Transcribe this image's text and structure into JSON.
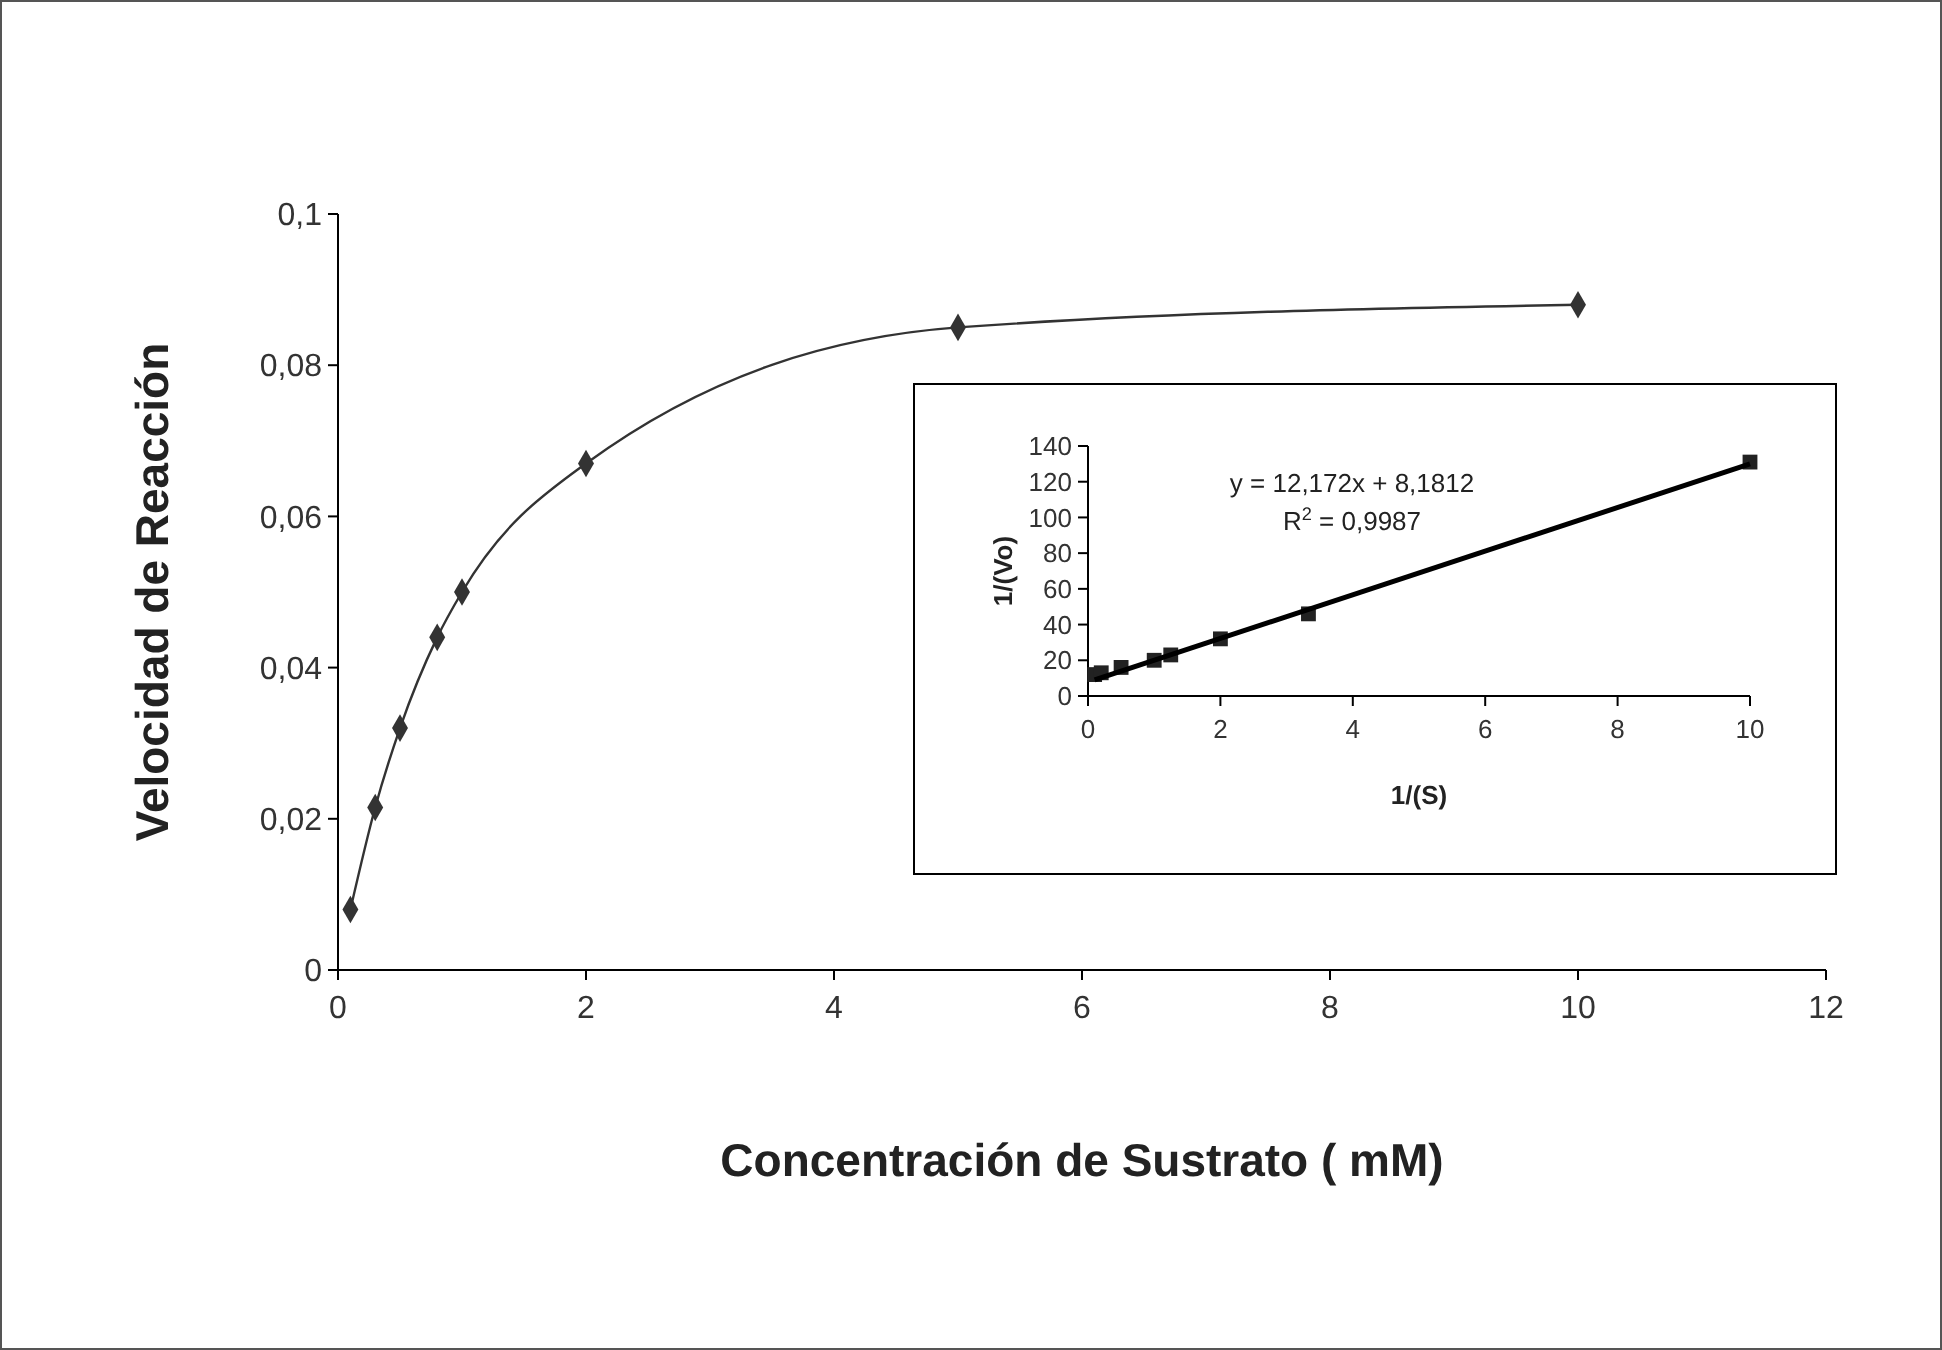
{
  "chart_data": [
    {
      "type": "line",
      "xlabel": "Concentración de Sustrato ( mM)",
      "ylabel": "Velocidad de Reacción",
      "x": [
        0.1,
        0.3,
        0.5,
        0.8,
        1,
        2,
        5,
        10
      ],
      "series": [
        {
          "color": "#333333",
          "values": [
            0.008,
            0.0215,
            0.032,
            0.044,
            0.05,
            0.067,
            0.085,
            0.088
          ]
        }
      ],
      "xlim": [
        0,
        12
      ],
      "xticks": [
        0,
        2,
        4,
        6,
        8,
        10,
        12
      ],
      "ylim": [
        0,
        0.1
      ],
      "yticks": [
        0,
        {
          "value": 0.02,
          "label": "0,02"
        },
        {
          "value": 0.04,
          "label": "0,04"
        },
        {
          "value": 0.06,
          "label": "0,06"
        },
        {
          "value": 0.08,
          "label": "0,08"
        },
        {
          "value": 0.1,
          "label": "0,1"
        }
      ],
      "marker": "diamond",
      "grid": false
    },
    {
      "type": "scatter",
      "xlabel": "1/(S)",
      "ylabel": "1/(Vo)",
      "series": [
        {
          "type": "scatter",
          "color": "#222222",
          "marker": "square",
          "x": [
            0.1,
            0.2,
            0.5,
            1,
            1.25,
            2,
            3.33,
            10
          ],
          "values": [
            12,
            13,
            16,
            20,
            23,
            32,
            46,
            131
          ]
        },
        {
          "type": "line",
          "color": "#000000",
          "marker": "none",
          "x": [
            0.1,
            10
          ],
          "values": [
            9,
            130
          ]
        }
      ],
      "xlim": [
        0,
        10
      ],
      "xticks": [
        0,
        2,
        4,
        6,
        8,
        10
      ],
      "ylim": [
        0,
        140
      ],
      "yticks": [
        0,
        20,
        40,
        60,
        80,
        100,
        120,
        140
      ],
      "grid": false,
      "annotations": [
        "y = 12,172x  + 8,1812",
        "R$^{2}$ = 0,9987"
      ]
    }
  ]
}
